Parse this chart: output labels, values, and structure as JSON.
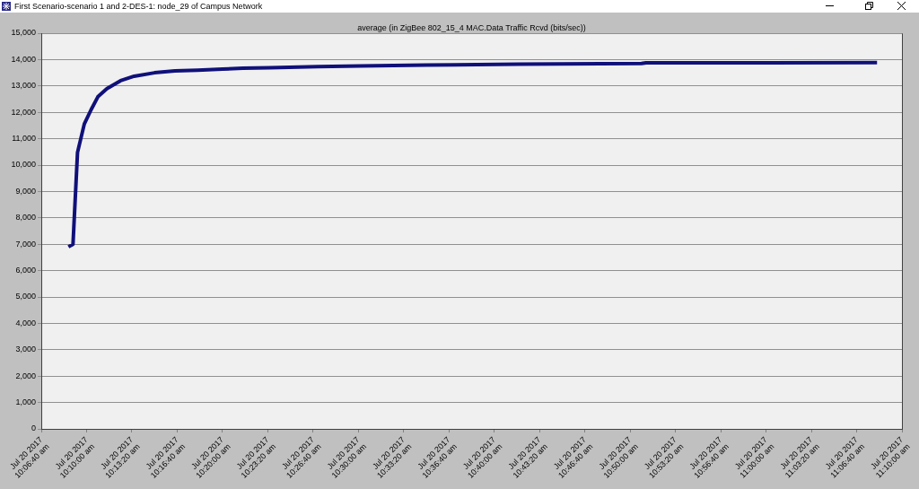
{
  "chart_data": {
    "type": "line",
    "title": "average (in ZigBee 802_15_4 MAC.Data Traffic Rcvd (bits/sec))",
    "annotations": [
      "First Scenario-scenario 1 and 2-DES-1: node_29 of Campus Network"
    ],
    "series": [
      {
        "color": "#10107a",
        "x": [
          "2017-07-20T10:08:40",
          "2017-07-20T10:09:00",
          "2017-07-20T10:09:20",
          "2017-07-20T10:09:50",
          "2017-07-20T10:10:20",
          "2017-07-20T10:10:50",
          "2017-07-20T10:11:30",
          "2017-07-20T10:12:30",
          "2017-07-20T10:13:30",
          "2017-07-20T10:15:00",
          "2017-07-20T10:16:30",
          "2017-07-20T10:18:10",
          "2017-07-20T10:20:00",
          "2017-07-20T10:21:30",
          "2017-07-20T10:23:30",
          "2017-07-20T10:27:00",
          "2017-07-20T10:30:10",
          "2017-07-20T10:35:00",
          "2017-07-20T10:41:50",
          "2017-07-20T10:50:50",
          "2017-07-20T10:51:10",
          "2017-07-20T11:00:10",
          "2017-07-20T11:08:10"
        ],
        "values": [
          6900,
          7000,
          10480,
          11560,
          12100,
          12590,
          12900,
          13200,
          13370,
          13500,
          13570,
          13600,
          13640,
          13670,
          13690,
          13730,
          13760,
          13790,
          13830,
          13850,
          13880,
          13880,
          13890
        ]
      }
    ],
    "xlim": [
      "2017-07-20T10:06:40",
      "2017-07-20T11:10:00"
    ],
    "xticks": [
      {
        "value": "2017-07-20T10:06:40",
        "label": "Jul 20 2017 10:06:40 am"
      },
      {
        "value": "2017-07-20T10:10:00",
        "label": "Jul 20 2017 10:10:00 am"
      },
      {
        "value": "2017-07-20T10:13:20",
        "label": "Jul 20 2017 10:13:20 am"
      },
      {
        "value": "2017-07-20T10:16:40",
        "label": "Jul 20 2017 10:16:40 am"
      },
      {
        "value": "2017-07-20T10:20:00",
        "label": "Jul 20 2017 10:20:00 am"
      },
      {
        "value": "2017-07-20T10:23:20",
        "label": "Jul 20 2017 10:23:20 am"
      },
      {
        "value": "2017-07-20T10:26:40",
        "label": "Jul 20 2017 10:26:40 am"
      },
      {
        "value": "2017-07-20T10:30:00",
        "label": "Jul 20 2017 10:30:00 am"
      },
      {
        "value": "2017-07-20T10:33:20",
        "label": "Jul 20 2017 10:33:20 am"
      },
      {
        "value": "2017-07-20T10:36:40",
        "label": "Jul 20 2017 10:36:40 am"
      },
      {
        "value": "2017-07-20T10:40:00",
        "label": "Jul 20 2017 10:40:00 am"
      },
      {
        "value": "2017-07-20T10:43:20",
        "label": "Jul 20 2017 10:43:20 am"
      },
      {
        "value": "2017-07-20T10:46:40",
        "label": "Jul 20 2017 10:46:40 am"
      },
      {
        "value": "2017-07-20T10:50:00",
        "label": "Jul 20 2017 10:50:00 am"
      },
      {
        "value": "2017-07-20T10:53:20",
        "label": "Jul 20 2017 10:53:20 am"
      },
      {
        "value": "2017-07-20T10:56:40",
        "label": "Jul 20 2017 10:56:40 am"
      },
      {
        "value": "2017-07-20T11:00:00",
        "label": "Jul 20 2017 11:00:00 am"
      },
      {
        "value": "2017-07-20T11:03:20",
        "label": "Jul 20 2017 11:03:20 am"
      },
      {
        "value": "2017-07-20T11:06:40",
        "label": "Jul 20 2017 11:06:40 am"
      },
      {
        "value": "2017-07-20T11:10:00",
        "label": "Jul 20 2017 11:10:00 am"
      }
    ],
    "ylim": [
      0,
      15000
    ],
    "yticks": [
      {
        "value": 0,
        "label": "0"
      },
      {
        "value": 1000,
        "label": "1,000"
      },
      {
        "value": 2000,
        "label": "2,000"
      },
      {
        "value": 3000,
        "label": "3,000"
      },
      {
        "value": 4000,
        "label": "4,000"
      },
      {
        "value": 5000,
        "label": "5,000"
      },
      {
        "value": 6000,
        "label": "6,000"
      },
      {
        "value": 7000,
        "label": "7,000"
      },
      {
        "value": 8000,
        "label": "8,000"
      },
      {
        "value": 9000,
        "label": "9,000"
      },
      {
        "value": 10000,
        "label": "10,000"
      },
      {
        "value": 11000,
        "label": "11,000"
      },
      {
        "value": 12000,
        "label": "12,000"
      },
      {
        "value": 13000,
        "label": "13,000"
      },
      {
        "value": 14000,
        "label": "14,000"
      },
      {
        "value": 15000,
        "label": "15,000"
      }
    ],
    "grid": "y",
    "legend": false
  }
}
